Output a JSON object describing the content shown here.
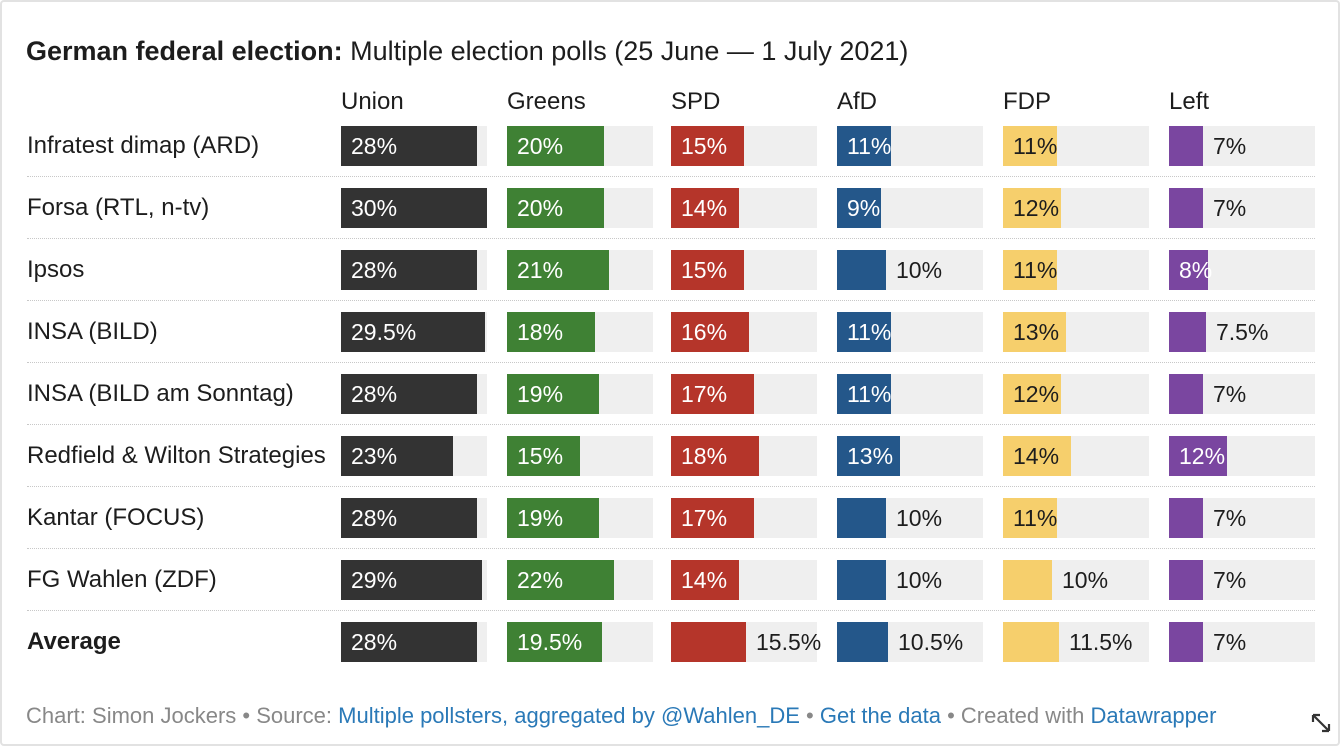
{
  "title": {
    "bold": "German federal election:",
    "rest": "Multiple election polls (25 June — 1 July 2021)"
  },
  "chart_data": {
    "type": "bar",
    "title": "German federal election: Multiple election polls (25 June — 1 July 2021)",
    "unit": "%",
    "xlim": [
      0,
      30
    ],
    "series": [
      {
        "name": "Union",
        "color": "#333333",
        "values": [
          28,
          30,
          28,
          29.5,
          28,
          23,
          28,
          29,
          28
        ],
        "labels": [
          "28%",
          "30%",
          "28%",
          "29.5%",
          "28%",
          "23%",
          "28%",
          "29%",
          "28%"
        ]
      },
      {
        "name": "Greens",
        "color": "#3f8134",
        "values": [
          20,
          20,
          21,
          18,
          19,
          15,
          19,
          22,
          19.5
        ],
        "labels": [
          "20%",
          "20%",
          "21%",
          "18%",
          "19%",
          "15%",
          "19%",
          "22%",
          "19.5%"
        ]
      },
      {
        "name": "SPD",
        "color": "#b5352a",
        "values": [
          15,
          14,
          15,
          16,
          17,
          18,
          17,
          14,
          15.5
        ],
        "labels": [
          "15%",
          "14%",
          "15%",
          "16%",
          "17%",
          "18%",
          "17%",
          "14%",
          "15.5%"
        ]
      },
      {
        "name": "AfD",
        "color": "#24578a",
        "values": [
          11,
          9,
          10,
          11,
          11,
          13,
          10,
          10,
          10.5
        ],
        "labels": [
          "11%",
          "9%",
          "10%",
          "11%",
          "11%",
          "13%",
          "10%",
          "10%",
          "10.5%"
        ]
      },
      {
        "name": "FDP",
        "color": "#f6cf6c",
        "values": [
          11,
          12,
          11,
          13,
          12,
          14,
          11,
          10,
          11.5
        ],
        "labels": [
          "11%",
          "12%",
          "11%",
          "13%",
          "12%",
          "14%",
          "11%",
          "10%",
          "11.5%"
        ]
      },
      {
        "name": "Left",
        "color": "#7a46a0",
        "values": [
          7,
          7,
          8,
          7.5,
          7,
          12,
          7,
          7,
          7
        ],
        "labels": [
          "7%",
          "7%",
          "8%",
          "7.5%",
          "7%",
          "12%",
          "7%",
          "7%",
          "7%"
        ]
      }
    ],
    "rows": [
      "Infratest dimap (ARD)",
      "Forsa (RTL, n-tv)",
      "Ipsos",
      "INSA (BILD)",
      "INSA (BILD am Sonntag)",
      "Redfield & Wilton Strategies",
      "Kantar (FOCUS)",
      "FG Wahlen (ZDF)",
      "Average"
    ]
  },
  "footer": {
    "prefix": "Chart: Simon Jockers • Source: ",
    "source_link": "Multiple pollsters, aggregated by @Wahlen_DE",
    "sep1": " • ",
    "data_link": "Get the data",
    "sep2": " • Created with ",
    "dw_link": "Datawrapper"
  },
  "icons": {
    "resize": "resize-arrows-icon"
  }
}
